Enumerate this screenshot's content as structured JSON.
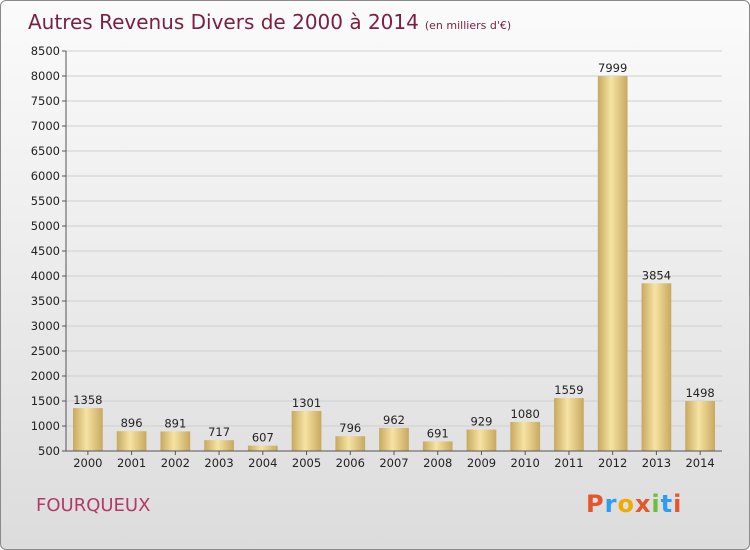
{
  "header": {
    "title": "Autres Revenus Divers de 2000 à 2014",
    "unit": "(en milliers d'€)"
  },
  "footer": {
    "commune": "FOURQUEUX",
    "logo": "Proxiti",
    "logo_colors": [
      "#e4572e",
      "#2a9df4",
      "#f2a900",
      "#e4572e",
      "#6cbf3b",
      "#2a9df4",
      "#e4572e"
    ]
  },
  "colors": {
    "bar_light": "#f6e3a3",
    "bar_dark": "#c8a860",
    "title": "#7a1f3e",
    "commune": "#b33a67"
  },
  "chart_data": {
    "type": "bar",
    "title": "Autres Revenus Divers de 2000 à 2014",
    "ylim": [
      500,
      8500
    ],
    "yticks": [
      500,
      1000,
      1500,
      2000,
      2500,
      3000,
      3500,
      4000,
      4500,
      5000,
      5500,
      6000,
      6500,
      7000,
      7500,
      8000,
      8500
    ],
    "grid": true,
    "categories": [
      "2000",
      "2001",
      "2002",
      "2003",
      "2004",
      "2005",
      "2006",
      "2007",
      "2008",
      "2009",
      "2010",
      "2011",
      "2012",
      "2013",
      "2014"
    ],
    "values": [
      1358,
      896,
      891,
      717,
      607,
      1301,
      796,
      962,
      691,
      929,
      1080,
      1559,
      7999,
      3854,
      1498
    ]
  }
}
